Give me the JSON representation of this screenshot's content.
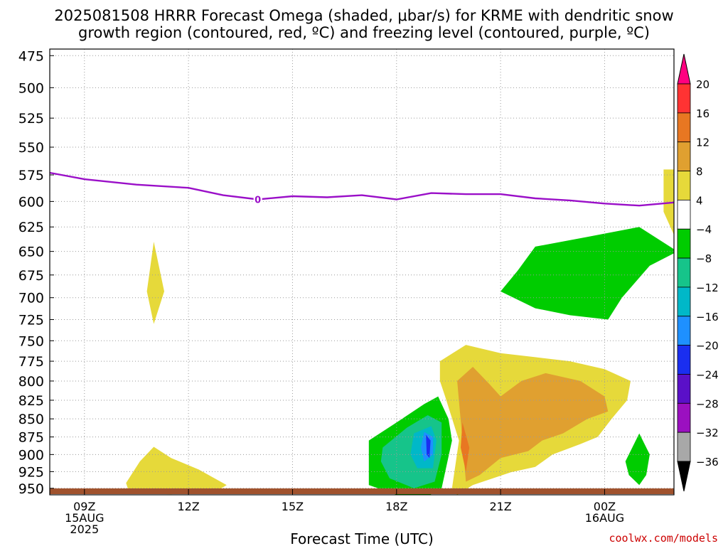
{
  "title": {
    "line1": "2025081508 HRRR Forecast Omega (shaded, μbar/s) for KRME with dendritic snow",
    "line2": "growth region (contoured, red, ºC) and freezing level (contoured, purple, ºC)"
  },
  "credit": "coolwx.com/models",
  "colors": {
    "freezing_line": "#9a0fc8",
    "ground": "#a0522d",
    "grid": "#9a9a9a"
  },
  "chart_data": {
    "type": "contour",
    "title": "2025081508 HRRR Forecast Omega (shaded, μbar/s) for KRME with dendritic snow growth region (contoured, red, ºC) and freezing level (contoured, purple, ºC)",
    "xlabel": "Forecast Time (UTC)",
    "ylabel": "",
    "y_scale": "log-pressure (inverted)",
    "ylim": [
      960,
      470
    ],
    "xlim_hours_after_09Z": [
      -1.0,
      17.0
    ],
    "grid": true,
    "y_ticks": [
      475,
      500,
      525,
      550,
      575,
      600,
      625,
      650,
      675,
      700,
      725,
      750,
      775,
      800,
      825,
      850,
      875,
      900,
      925,
      950
    ],
    "x_ticks": [
      {
        "h": 0,
        "lines": [
          "09Z",
          "15AUG",
          "2025"
        ]
      },
      {
        "h": 3,
        "lines": [
          "12Z"
        ]
      },
      {
        "h": 6,
        "lines": [
          "15Z"
        ]
      },
      {
        "h": 9,
        "lines": [
          "18Z"
        ]
      },
      {
        "h": 12,
        "lines": [
          "21Z"
        ]
      },
      {
        "h": 15,
        "lines": [
          "00Z",
          "16AUG"
        ]
      }
    ],
    "colorbar": {
      "labels": [
        "20",
        "16",
        "12",
        "8",
        "4",
        "−4",
        "−8",
        "−12",
        "−16",
        "−20",
        "−24",
        "−28",
        "−32",
        "−36"
      ],
      "colors": [
        "#ff0080",
        "#ff3333",
        "#e87722",
        "#e0a030",
        "#e6d93a",
        "#ffffff",
        "#00cc00",
        "#16c48a",
        "#00b8c8",
        "#1e90ff",
        "#1a2ef0",
        "#5a10c8",
        "#9b10c0",
        "#a8a8a8",
        "#000000"
      ]
    },
    "freezing_level": {
      "label": "0",
      "points": [
        [
          -1.0,
          573
        ],
        [
          0.0,
          579
        ],
        [
          1.5,
          584
        ],
        [
          3.0,
          587
        ],
        [
          4.0,
          594
        ],
        [
          5.0,
          598
        ],
        [
          6.0,
          595
        ],
        [
          7.0,
          596
        ],
        [
          8.0,
          594
        ],
        [
          9.0,
          598
        ],
        [
          10.0,
          592
        ],
        [
          11.0,
          593
        ],
        [
          12.0,
          593
        ],
        [
          13.0,
          597
        ],
        [
          14.0,
          599
        ],
        [
          15.0,
          602
        ],
        [
          16.0,
          604
        ],
        [
          17.0,
          601
        ]
      ]
    },
    "omega_regions": [
      {
        "level": "4 to 8",
        "color": "#e6d93a",
        "points": [
          [
            2.0,
            640
          ],
          [
            2.3,
            693
          ],
          [
            2.0,
            730
          ],
          [
            1.8,
            693
          ]
        ]
      },
      {
        "level": "4 to 8",
        "color": "#e6d93a",
        "points": [
          [
            1.2,
            942
          ],
          [
            1.6,
            910
          ],
          [
            2.0,
            889
          ],
          [
            2.5,
            905
          ],
          [
            3.3,
            922
          ],
          [
            4.1,
            945
          ],
          [
            3.8,
            955
          ],
          [
            2.5,
            959
          ],
          [
            1.3,
            958
          ]
        ]
      },
      {
        "level": "4 to 8",
        "color": "#e6d93a",
        "points": [
          [
            10.25,
            775
          ],
          [
            11.0,
            755
          ],
          [
            12.0,
            765
          ],
          [
            13.0,
            770
          ],
          [
            14.0,
            775
          ],
          [
            15.0,
            785
          ],
          [
            15.75,
            800
          ],
          [
            15.65,
            825
          ],
          [
            15.2,
            850
          ],
          [
            14.8,
            875
          ],
          [
            14.3,
            885
          ],
          [
            13.5,
            900
          ],
          [
            13.0,
            918
          ],
          [
            12.3,
            926
          ],
          [
            11.2,
            945
          ],
          [
            10.75,
            960
          ],
          [
            10.6,
            950
          ],
          [
            10.8,
            880
          ],
          [
            10.4,
            820
          ],
          [
            10.25,
            800
          ]
        ]
      },
      {
        "level": "4 to 8",
        "color": "#e6d93a",
        "points": [
          [
            16.7,
            570
          ],
          [
            17.0,
            570
          ],
          [
            17.0,
            633
          ],
          [
            16.7,
            610
          ]
        ]
      },
      {
        "level": "8 to 12",
        "color": "#e0a030",
        "points": [
          [
            10.75,
            800
          ],
          [
            11.2,
            782
          ],
          [
            11.7,
            805
          ],
          [
            12.0,
            820
          ],
          [
            12.6,
            800
          ],
          [
            13.3,
            790
          ],
          [
            14.3,
            800
          ],
          [
            15.0,
            820
          ],
          [
            15.1,
            840
          ],
          [
            14.5,
            850
          ],
          [
            13.8,
            870
          ],
          [
            13.2,
            880
          ],
          [
            12.8,
            895
          ],
          [
            12.0,
            905
          ],
          [
            11.4,
            930
          ],
          [
            11.0,
            940
          ],
          [
            10.9,
            880
          ]
        ]
      },
      {
        "level": "12 to 16",
        "color": "#e87722",
        "points": [
          [
            10.9,
            855
          ],
          [
            11.1,
            890
          ],
          [
            11.0,
            925
          ],
          [
            10.85,
            890
          ]
        ]
      },
      {
        "level": "-4 to -8",
        "color": "#00cc00",
        "points": [
          [
            12.5,
            670
          ],
          [
            13.0,
            645
          ],
          [
            14.5,
            635
          ],
          [
            16.0,
            625
          ],
          [
            17.1,
            650
          ],
          [
            16.3,
            665
          ],
          [
            15.5,
            700
          ],
          [
            15.1,
            725
          ],
          [
            14.0,
            720
          ],
          [
            13.0,
            712
          ],
          [
            12.0,
            693
          ]
        ]
      },
      {
        "level": "-4 to -8",
        "color": "#00cc00",
        "points": [
          [
            8.2,
            880
          ],
          [
            9.0,
            855
          ],
          [
            9.8,
            830
          ],
          [
            10.2,
            820
          ],
          [
            10.5,
            850
          ],
          [
            10.6,
            880
          ],
          [
            10.3,
            950
          ],
          [
            9.8,
            965
          ],
          [
            9.0,
            960
          ],
          [
            8.2,
            945
          ]
        ]
      },
      {
        "level": "-4 to -8",
        "color": "#00cc00",
        "points": [
          [
            16.0,
            870
          ],
          [
            16.3,
            900
          ],
          [
            16.2,
            930
          ],
          [
            16.0,
            945
          ],
          [
            15.7,
            930
          ],
          [
            15.6,
            910
          ]
        ]
      },
      {
        "level": "-8 to -12",
        "color": "#16c48a",
        "points": [
          [
            8.6,
            890
          ],
          [
            9.3,
            862
          ],
          [
            9.9,
            845
          ],
          [
            10.3,
            855
          ],
          [
            10.3,
            900
          ],
          [
            10.1,
            940
          ],
          [
            9.5,
            950
          ],
          [
            8.8,
            935
          ],
          [
            8.55,
            910
          ]
        ]
      },
      {
        "level": "-12 to -16",
        "color": "#00b8c8",
        "points": [
          [
            9.5,
            870
          ],
          [
            10.0,
            860
          ],
          [
            10.15,
            880
          ],
          [
            10.05,
            920
          ],
          [
            9.6,
            920
          ],
          [
            9.4,
            900
          ]
        ]
      },
      {
        "level": "-16 to -20",
        "color": "#1e90ff",
        "points": [
          [
            9.8,
            868
          ],
          [
            10.05,
            875
          ],
          [
            10.05,
            900
          ],
          [
            9.8,
            910
          ],
          [
            9.7,
            890
          ]
        ]
      },
      {
        "level": "-20 to -24",
        "color": "#1a2ef0",
        "points": [
          [
            9.85,
            872
          ],
          [
            9.98,
            880
          ],
          [
            9.95,
            905
          ],
          [
            9.87,
            900
          ]
        ]
      }
    ]
  }
}
